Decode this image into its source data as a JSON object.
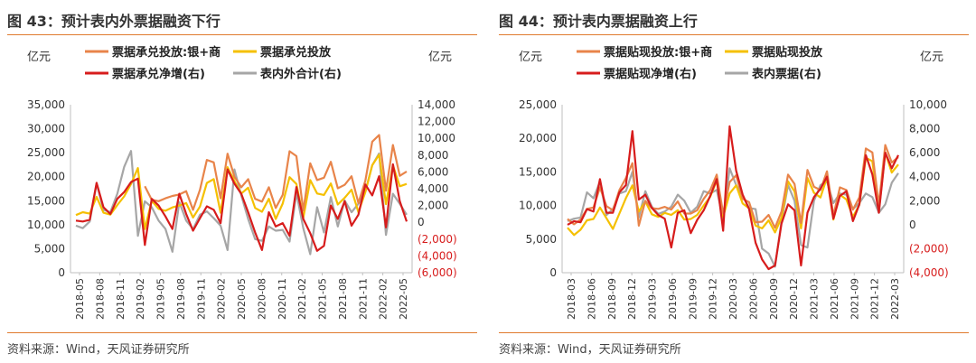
{
  "panels": [
    {
      "title": "图 43：预计表内外票据融资下行",
      "source": "资料来源：Wind，天风证券研究所"
    },
    {
      "title": "图 44：预计表内票据融资上行",
      "source": "资料来源：Wind，天风证券研究所"
    }
  ],
  "chart_data": [
    {
      "type": "line",
      "ylabel_left": "亿元",
      "ylabel_right": "亿元",
      "ylim_left": [
        0,
        35000
      ],
      "yticks_left": [
        "0",
        "5,000",
        "10,000",
        "15,000",
        "20,000",
        "25,000",
        "30,000",
        "35,000"
      ],
      "ylim_right": [
        -6000,
        14000
      ],
      "yticks_right": [
        "(6,000)",
        "(4,000)",
        "(2,000)",
        "0",
        "2,000",
        "4,000",
        "6,000",
        "8,000",
        "10,000",
        "12,000",
        "14,000"
      ],
      "x_ticks": [
        "2018-05",
        "2018-08",
        "2018-11",
        "2019-02",
        "2019-05",
        "2019-08",
        "2019-11",
        "2020-02",
        "2020-05",
        "2020-08",
        "2020-11",
        "2021-02",
        "2021-05",
        "2021-08",
        "2021-11",
        "2022-02",
        "2022-05"
      ],
      "legend_rows": [
        [
          0,
          1
        ],
        [
          2,
          3
        ]
      ],
      "series": [
        {
          "name": "票据承兑投放:银+商",
          "color": "#e8844a",
          "axis": "left",
          "values": [
            null,
            null,
            null,
            null,
            null,
            null,
            null,
            null,
            null,
            null,
            18000,
            15200,
            14900,
            15500,
            16000,
            16300,
            17000,
            13100,
            17300,
            23500,
            23000,
            15500,
            24800,
            20000,
            17800,
            19500,
            15400,
            14800,
            17800,
            13500,
            16200,
            25300,
            24300,
            12900,
            22800,
            19300,
            19800,
            23100,
            17600,
            18300,
            20100,
            14500,
            19200,
            27300,
            28700,
            17100,
            26600,
            20200,
            21100
          ]
        },
        {
          "name": "票据承兑投放",
          "color": "#f5c000",
          "axis": "left",
          "values": [
            12000,
            12600,
            12300,
            15800,
            12500,
            12100,
            14100,
            15900,
            18500,
            21800,
            9100,
            15000,
            13300,
            12900,
            13600,
            14000,
            14500,
            11500,
            13800,
            18700,
            19500,
            12500,
            22000,
            19100,
            16500,
            17700,
            13500,
            12700,
            15400,
            11200,
            14400,
            19900,
            18500,
            11400,
            19300,
            16500,
            16200,
            18600,
            14200,
            15600,
            17300,
            12600,
            16800,
            22400,
            24600,
            14300,
            22400,
            18000,
            18500
          ]
        },
        {
          "name": "票据承兑净增(右)",
          "color": "#d71c1c",
          "axis": "right",
          "values": [
            200,
            100,
            300,
            4700,
            1800,
            1000,
            2800,
            3600,
            4800,
            5200,
            -2700,
            2800,
            2000,
            700,
            -800,
            3400,
            1000,
            -1000,
            500,
            1900,
            1500,
            -100,
            6300,
            4600,
            3400,
            1200,
            -1200,
            -3300,
            1200,
            -500,
            -100,
            -1600,
            4200,
            400,
            -1300,
            -3400,
            -2800,
            2000,
            400,
            2500,
            -400,
            900,
            4500,
            3200,
            5500,
            -600,
            6900,
            2500,
            100
          ]
        },
        {
          "name": "表内外合计(右)",
          "color": "#a6a6a6",
          "axis": "right",
          "values": [
            -400,
            -700,
            100,
            4600,
            1500,
            1200,
            3400,
            6600,
            8500,
            -1600,
            2500,
            1800,
            200,
            -800,
            -3500,
            2400,
            200,
            -800,
            900,
            1300,
            500,
            -400,
            -3300,
            6300,
            3200,
            400,
            -2000,
            -2200,
            -500,
            -1000,
            -900,
            -2300,
            3500,
            -700,
            -3800,
            1800,
            -1200,
            3000,
            -500,
            2600,
            1200,
            2200,
            3700,
            6800,
            8200,
            -1500,
            3400,
            2200,
            900
          ]
        }
      ]
    },
    {
      "type": "line",
      "ylabel_left": "亿元",
      "ylabel_right": "亿元",
      "ylim_left": [
        0,
        25000
      ],
      "yticks_left": [
        "0",
        "5,000",
        "10,000",
        "15,000",
        "20,000",
        "25,000"
      ],
      "ylim_right": [
        -4000,
        10000
      ],
      "yticks_right": [
        "(4,000)",
        "(2,000)",
        "0",
        "2,000",
        "4,000",
        "6,000",
        "8,000",
        "10,000"
      ],
      "x_ticks": [
        "2018-03",
        "2018-06",
        "2018-09",
        "2018-12",
        "2019-03",
        "2019-06",
        "2019-09",
        "2019-12",
        "2020-03",
        "2020-06",
        "2020-09",
        "2020-12",
        "2021-03",
        "2021-06",
        "2021-09",
        "2021-12",
        "2022-03"
      ],
      "legend_rows": [
        [
          0,
          1
        ],
        [
          2,
          3
        ]
      ],
      "series": [
        {
          "name": "票据贴现投放:银+商",
          "color": "#e8844a",
          "axis": "left",
          "values": [
            8000,
            7200,
            7900,
            9500,
            9700,
            12700,
            9900,
            9300,
            12300,
            14100,
            16300,
            7000,
            10700,
            9600,
            9500,
            9800,
            9400,
            10600,
            8800,
            8800,
            9300,
            11000,
            12300,
            14600,
            8800,
            13500,
            14500,
            11000,
            10500,
            7500,
            7600,
            8600,
            6700,
            9100,
            14600,
            13200,
            7400,
            15300,
            12800,
            12300,
            15100,
            8500,
            12700,
            12300,
            9400,
            11200,
            18500,
            17900,
            10100,
            19000,
            16400,
            17200
          ]
        },
        {
          "name": "票据贴现投放",
          "color": "#f5c000",
          "axis": "left",
          "values": [
            6700,
            5600,
            6400,
            7800,
            8000,
            9700,
            8100,
            6500,
            8800,
            11100,
            13000,
            9100,
            10600,
            8700,
            8300,
            8900,
            8600,
            9300,
            7900,
            8000,
            8600,
            10000,
            11300,
            13700,
            8300,
            11800,
            13000,
            10300,
            9600,
            7000,
            6600,
            7800,
            6000,
            8200,
            13600,
            12100,
            6600,
            14100,
            11900,
            11200,
            14200,
            7900,
            11600,
            10900,
            8300,
            10100,
            17100,
            16600,
            9200,
            17900,
            14900,
            16100
          ]
        },
        {
          "name": "票据贴现净增(右)",
          "color": "#d71c1c",
          "axis": "right",
          "values": [
            0,
            300,
            200,
            1300,
            1100,
            3800,
            1000,
            1000,
            2700,
            3300,
            7800,
            2100,
            2500,
            1400,
            800,
            500,
            -1900,
            1000,
            1200,
            -700,
            400,
            1200,
            2400,
            3800,
            -500,
            8200,
            4500,
            2500,
            1300,
            -1500,
            -2900,
            -3700,
            -3400,
            100,
            1700,
            1200,
            -3400,
            1000,
            2300,
            3000,
            4000,
            500,
            2400,
            2800,
            300,
            1700,
            5800,
            4200,
            1000,
            6000,
            4700,
            5800
          ]
        },
        {
          "name": "表内票据(右)",
          "color": "#a6a6a6",
          "axis": "right",
          "values": [
            300,
            500,
            600,
            2700,
            2200,
            3600,
            800,
            1300,
            2600,
            2800,
            4400,
            600,
            2800,
            1500,
            900,
            1100,
            1500,
            2500,
            2000,
            1000,
            1500,
            2800,
            2600,
            2900,
            500,
            4700,
            3300,
            2400,
            1400,
            1300,
            -2000,
            -2400,
            -3500,
            300,
            3300,
            2000,
            -1700,
            -1900,
            2000,
            3300,
            3600,
            1800,
            2600,
            2500,
            1300,
            1800,
            2600,
            2300,
            1000,
            1700,
            3500,
            4300
          ]
        }
      ]
    }
  ]
}
